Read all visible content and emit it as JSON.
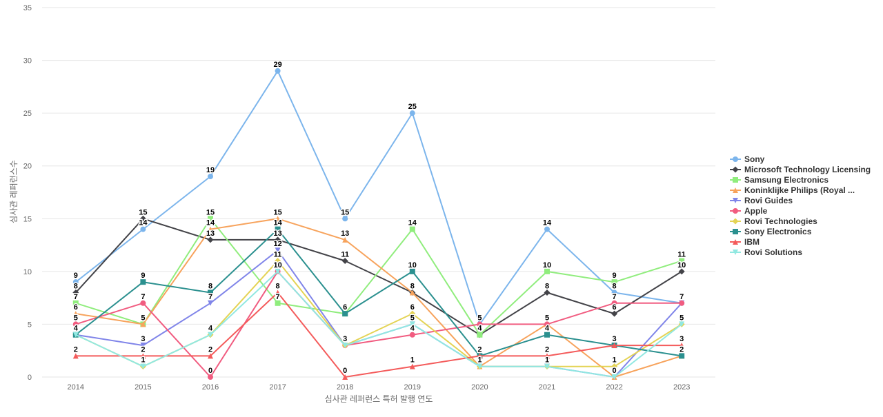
{
  "chart_data": {
    "type": "line",
    "xlabel": "심사관 레퍼런스 특허 발행 연도",
    "ylabel": "심사관 레퍼런스수",
    "ylim": [
      0,
      35
    ],
    "yticks": [
      0,
      5,
      10,
      15,
      20,
      25,
      30,
      35
    ],
    "grid": true,
    "legend_position": "right",
    "categories": [
      "2014",
      "2015",
      "2016",
      "2017",
      "2018",
      "2019",
      "2020",
      "2021",
      "2022",
      "2023"
    ],
    "series": [
      {
        "name": "Sony",
        "color": "#7cb5ec",
        "marker": "circle",
        "values": [
          9,
          14,
          19,
          29,
          15,
          25,
          5,
          14,
          8,
          7
        ]
      },
      {
        "name": "Microsoft Technology Licensing",
        "color": "#434348",
        "marker": "diamond",
        "values": [
          8,
          15,
          13,
          13,
          11,
          8,
          4,
          8,
          6,
          10
        ]
      },
      {
        "name": "Samsung Electronics",
        "color": "#90ed7d",
        "marker": "square",
        "values": [
          7,
          5,
          15,
          7,
          6,
          14,
          4,
          10,
          9,
          11
        ]
      },
      {
        "name": "Koninklijke Philips (Royal ...",
        "color": "#f7a35c",
        "marker": "triangle",
        "values": [
          6,
          5,
          14,
          15,
          13,
          8,
          1,
          5,
          0,
          2
        ]
      },
      {
        "name": "Rovi Guides",
        "color": "#8085e9",
        "marker": "triangle-down",
        "values": [
          4,
          3,
          7,
          12,
          3,
          5,
          1,
          1,
          0,
          7
        ]
      },
      {
        "name": "Apple",
        "color": "#f15c80",
        "marker": "circle",
        "values": [
          5,
          7,
          0,
          10,
          3,
          4,
          5,
          5,
          7,
          7
        ]
      },
      {
        "name": "Rovi Technologies",
        "color": "#e4d354",
        "marker": "diamond",
        "values": [
          4,
          1,
          4,
          11,
          3,
          6,
          1,
          1,
          1,
          5
        ]
      },
      {
        "name": "Sony Electronics",
        "color": "#2b908f",
        "marker": "square",
        "values": [
          4,
          9,
          8,
          14,
          6,
          10,
          2,
          4,
          3,
          2
        ]
      },
      {
        "name": "IBM",
        "color": "#f45b5b",
        "marker": "triangle",
        "values": [
          2,
          2,
          2,
          8,
          0,
          1,
          2,
          2,
          3,
          3
        ]
      },
      {
        "name": "Rovi Solutions",
        "color": "#91e8e1",
        "marker": "triangle-down",
        "values": [
          4,
          1,
          4,
          10,
          3,
          5,
          1,
          1,
          0,
          5
        ]
      }
    ]
  }
}
